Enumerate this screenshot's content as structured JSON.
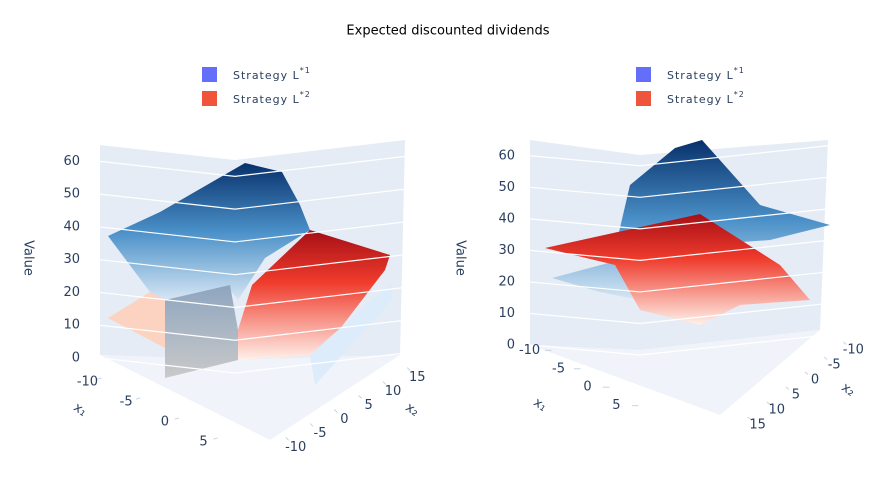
{
  "chart_data": [
    {
      "type": "surface3d",
      "title": "Expected discounted dividends",
      "series": [
        {
          "name": "Strategy L*1",
          "color": "#636efa"
        },
        {
          "name": "Strategy L*2",
          "color": "#ef553b"
        }
      ],
      "zlabel": "Value",
      "zlim": [
        0,
        65
      ],
      "zticks": [
        0,
        10,
        20,
        30,
        40,
        50,
        60
      ],
      "x1label": "x₁",
      "x1lim": [
        -12,
        7
      ],
      "x1ticks": [
        5,
        0,
        -5,
        -10
      ],
      "x2label": "x₂",
      "x2lim": [
        -12,
        17
      ],
      "x2ticks": [
        -10,
        -5,
        0,
        5,
        10,
        15
      ]
    },
    {
      "type": "surface3d",
      "series": [
        {
          "name": "Strategy L*1",
          "color": "#636efa"
        },
        {
          "name": "Strategy L*2",
          "color": "#ef553b"
        }
      ],
      "zlabel": "Value",
      "zlim": [
        0,
        65
      ],
      "zticks": [
        0,
        10,
        20,
        30,
        40,
        50,
        60
      ],
      "x1label": "x₁",
      "x1lim": [
        -12,
        7
      ],
      "x1ticks": [
        -10,
        -5,
        0,
        5
      ],
      "x2label": "x₂",
      "x2lim": [
        -12,
        17
      ],
      "x2ticks": [
        -10,
        -5,
        0,
        5,
        10,
        15
      ]
    }
  ]
}
